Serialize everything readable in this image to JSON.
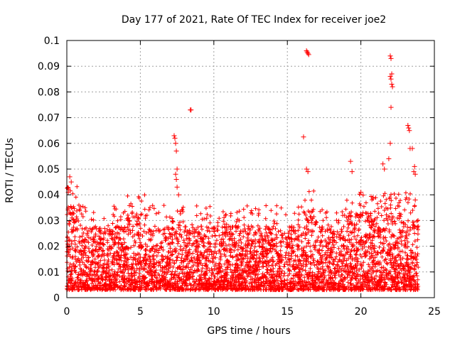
{
  "chart_data": {
    "type": "scatter",
    "title": "Day 177 of 2021, Rate Of TEC Index for receiver joe2",
    "xlabel": "GPS time / hours",
    "ylabel": "ROTI / TECUs",
    "xlim": [
      0,
      25
    ],
    "ylim": [
      0,
      0.1
    ],
    "xticks": [
      0,
      5,
      10,
      15,
      20,
      25
    ],
    "xtick_labels": [
      "0",
      "5",
      "10",
      "15",
      "20",
      "25"
    ],
    "yticks": [
      0,
      0.01,
      0.02,
      0.03,
      0.04,
      0.05,
      0.06,
      0.07,
      0.08,
      0.09,
      0.1
    ],
    "ytick_labels": [
      "0",
      "0.01",
      "0.02",
      "0.03",
      "0.04",
      "0.05",
      "0.06",
      "0.07",
      "0.08",
      "0.09",
      "0.1"
    ],
    "grid": true,
    "marker": "+",
    "color": "#ff0000",
    "series": [
      {
        "name": "ROTI",
        "description": "dense band of ROTI values approx 0.003-0.035 TECU/s across 0-24 h",
        "x": [
          7.3,
          7.35,
          7.4,
          7.45,
          7.5,
          7.4,
          7.45,
          8.4,
          8.45,
          16.3,
          16.35,
          16.4,
          16.45,
          16.1,
          16.3,
          16.4,
          22.0,
          22.05,
          22.1,
          22.0,
          22.05,
          22.1,
          22.15,
          22.05,
          22.0,
          23.2,
          23.25,
          23.3,
          23.35,
          23.5,
          23.6,
          23.7,
          19.3,
          19.4,
          21.5,
          21.6,
          20.0,
          0.2,
          0.3,
          0.1,
          7.5,
          7.6,
          23.65,
          23.7,
          21.9
        ],
        "y": [
          0.063,
          0.062,
          0.06,
          0.057,
          0.05,
          0.048,
          0.046,
          0.073,
          0.073,
          0.096,
          0.0955,
          0.095,
          0.0945,
          0.0625,
          0.05,
          0.049,
          0.094,
          0.093,
          0.087,
          0.086,
          0.085,
          0.083,
          0.082,
          0.074,
          0.06,
          0.067,
          0.066,
          0.065,
          0.058,
          0.058,
          0.049,
          0.048,
          0.053,
          0.049,
          0.052,
          0.05,
          0.041,
          0.047,
          0.045,
          0.041,
          0.043,
          0.04,
          0.051,
          0.038,
          0.054
        ]
      }
    ]
  }
}
